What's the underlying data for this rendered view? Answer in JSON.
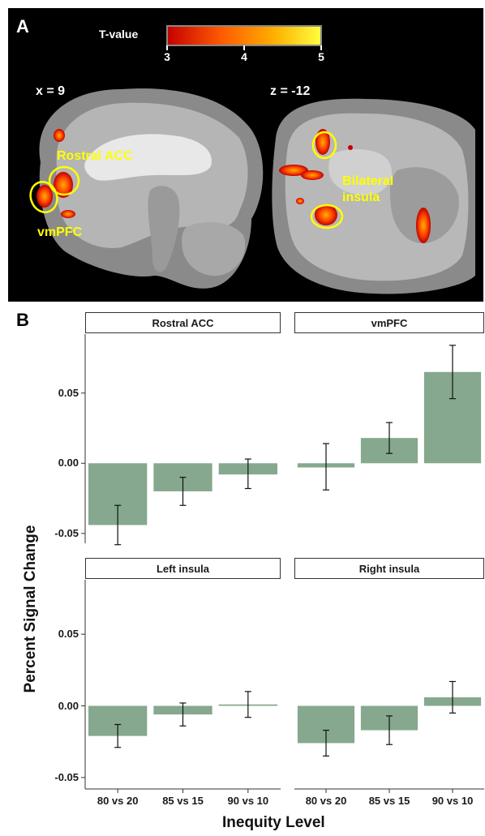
{
  "panel_a": {
    "letter": "A",
    "colorbar": {
      "label": "T-value",
      "ticks": [
        "3",
        "4",
        "5"
      ],
      "colors": [
        "#c40000",
        "#ff5a00",
        "#ffb000",
        "#ffff40"
      ]
    },
    "sagittal": {
      "coordinate": "x = 9",
      "labels": [
        "Rostral ACC",
        "vmPFC"
      ]
    },
    "axial": {
      "coordinate": "z = -12",
      "labels": [
        "Bilateral",
        "insula"
      ]
    },
    "annotation_color": "#ffff00"
  },
  "panel_b": {
    "letter": "B"
  },
  "chart_data": {
    "type": "bar",
    "facets": [
      "Rostral ACC",
      "vmPFC",
      "Left insula",
      "Right insula"
    ],
    "categories": [
      "80 vs 20",
      "85 vs 15",
      "90 vs 10"
    ],
    "series": [
      {
        "facet": "Rostral ACC",
        "values": [
          -0.044,
          -0.02,
          -0.008
        ],
        "error_low": [
          -0.058,
          -0.03,
          -0.018
        ],
        "error_high": [
          -0.03,
          -0.01,
          0.003
        ]
      },
      {
        "facet": "vmPFC",
        "values": [
          -0.003,
          0.018,
          0.065
        ],
        "error_low": [
          -0.019,
          0.007,
          0.046
        ],
        "error_high": [
          0.014,
          0.029,
          0.084
        ]
      },
      {
        "facet": "Left insula",
        "values": [
          -0.021,
          -0.006,
          0.001
        ],
        "error_low": [
          -0.029,
          -0.014,
          -0.008
        ],
        "error_high": [
          -0.013,
          0.002,
          0.01
        ]
      },
      {
        "facet": "Right insula",
        "values": [
          -0.026,
          -0.017,
          0.006
        ],
        "error_low": [
          -0.035,
          -0.027,
          -0.005
        ],
        "error_high": [
          -0.017,
          -0.007,
          0.017
        ]
      }
    ],
    "yticks": [
      "-0.05",
      "0.00",
      "0.05"
    ],
    "ytick_values": [
      -0.05,
      0.0,
      0.05
    ],
    "ylim_top_row": [
      -0.057,
      0.092
    ],
    "ylim_bottom_row": [
      -0.058,
      0.088
    ],
    "xlabel": "Inequity Level",
    "ylabel": "Percent Signal Change",
    "bar_color": "#86a88e",
    "grid": false
  }
}
